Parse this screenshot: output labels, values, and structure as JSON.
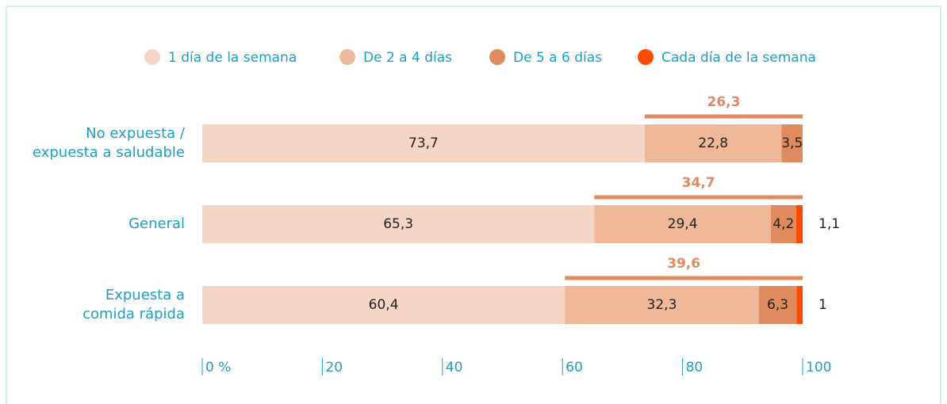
{
  "chart_data": {
    "type": "stacked-bar-horizontal",
    "categories": [
      "No expuesta /\nexpuesta a saludable",
      "General",
      "Expuesta a\ncomida rápida"
    ],
    "series": [
      {
        "name": "1 día de la semana",
        "color": "#f5d5c5",
        "values": [
          73.7,
          65.3,
          60.4
        ],
        "value_labels": [
          "73,7",
          "65,3",
          "60,4"
        ]
      },
      {
        "name": "De 2 a 4 días",
        "color": "#efb898",
        "values": [
          22.8,
          29.4,
          32.3
        ],
        "value_labels": [
          "22,8",
          "29,4",
          "32,3"
        ]
      },
      {
        "name": "De 5 a 6 días",
        "color": "#e08a5f",
        "values": [
          3.5,
          4.2,
          6.3
        ],
        "value_labels": [
          "3,5",
          "4,2",
          "6,3"
        ]
      },
      {
        "name": "Cada día de la semana",
        "color": "#ff4b00",
        "values": [
          null,
          1.1,
          1
        ],
        "value_labels": [
          null,
          "1,1",
          "1"
        ]
      }
    ],
    "bracket_values": [
      26.3,
      34.7,
      39.6
    ],
    "bracket_labels": [
      "26,3",
      "34,7",
      "39,6"
    ],
    "bracket_color": "#e08a5f",
    "xlim": [
      0,
      100
    ],
    "xticks": [
      {
        "value": 0,
        "label": "0 %"
      },
      20,
      40,
      60,
      80,
      100
    ]
  }
}
